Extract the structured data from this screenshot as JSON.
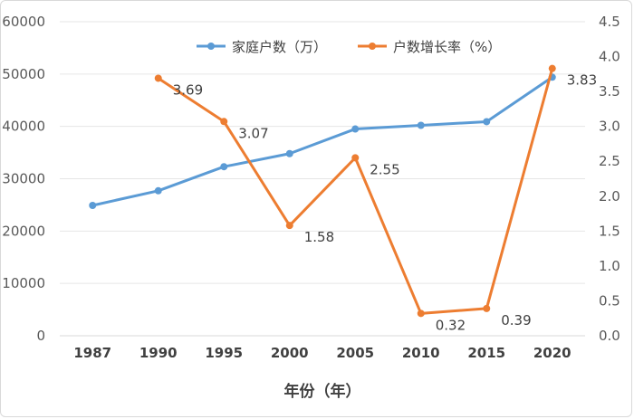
{
  "chart_data": {
    "type": "line",
    "xlabel": "年份（年）",
    "categories": [
      "1987",
      "1990",
      "1995",
      "2000",
      "2005",
      "2010",
      "2015",
      "2020"
    ],
    "y_left": {
      "ylim": [
        0,
        60000
      ],
      "ticks": [
        "0",
        "10000",
        "20000",
        "30000",
        "40000",
        "50000",
        "60000"
      ]
    },
    "y_right": {
      "ylim": [
        0,
        4.5
      ],
      "ticks": [
        "0.0",
        "0.5",
        "1.0",
        "1.5",
        "2.0",
        "2.5",
        "3.0",
        "3.5",
        "4.0",
        "4.5"
      ]
    },
    "grid": true,
    "legend_position": "top",
    "series": [
      {
        "name": "家庭户数（万）",
        "axis": "left",
        "color": "#5b9bd5",
        "values": [
          24900,
          27700,
          32300,
          34800,
          39500,
          40200,
          40900,
          49400
        ]
      },
      {
        "name": "户数增长率（%）",
        "axis": "right",
        "color": "#ed7d31",
        "values": [
          null,
          3.69,
          3.07,
          1.58,
          2.55,
          0.32,
          0.39,
          3.83
        ],
        "data_labels": [
          "",
          "3.69",
          "3.07",
          "1.58",
          "2.55",
          "0.32",
          "0.39",
          "3.83"
        ]
      }
    ]
  }
}
